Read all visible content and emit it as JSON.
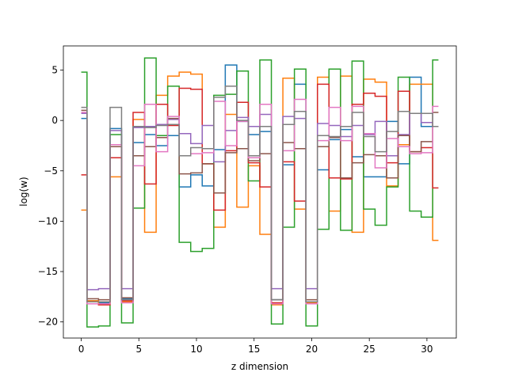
{
  "chart_data": {
    "type": "line",
    "drawstyle": "steps-mid",
    "xlabel": "z dimension",
    "ylabel": "log(w)",
    "xlim": [
      -1.55,
      32.55
    ],
    "ylim": [
      -21.6,
      7.4
    ],
    "xticks": [
      0,
      5,
      10,
      15,
      20,
      25,
      30
    ],
    "yticks": [
      5,
      0,
      -5,
      -10,
      -15,
      -20
    ],
    "ytick_labels": [
      "5",
      "0",
      "−5",
      "−10",
      "−15",
      "−20"
    ],
    "grid": false,
    "legend": "none",
    "x": [
      0,
      1,
      2,
      3,
      4,
      5,
      6,
      7,
      8,
      9,
      10,
      11,
      12,
      13,
      14,
      15,
      16,
      17,
      18,
      19,
      20,
      21,
      22,
      23,
      24,
      25,
      26,
      27,
      28,
      29,
      30,
      31
    ],
    "series": [
      {
        "color": "#1f77b4",
        "values": [
          0.2,
          -17.9,
          -18.1,
          -0.8,
          -17.7,
          -2.2,
          -1.4,
          -2.5,
          -1.5,
          -6.6,
          -5.4,
          -6.5,
          -2.9,
          5.5,
          -0.1,
          -1.4,
          -1.1,
          -17.8,
          -4.4,
          3.6,
          -18.0,
          -4.9,
          -1.9,
          -0.9,
          -3.6,
          -5.6,
          -5.6,
          -0.1,
          -4.3,
          4.3,
          -0.6,
          -0.6
        ]
      },
      {
        "color": "#ff7f0e",
        "values": [
          -8.9,
          -17.9,
          -18.3,
          -5.6,
          -18.0,
          0.1,
          -11.1,
          2.5,
          4.4,
          4.8,
          4.6,
          -4.3,
          -10.6,
          0.6,
          -8.6,
          -4.5,
          -11.3,
          -18.3,
          4.2,
          -8.8,
          -18.1,
          4.3,
          -9.0,
          4.4,
          -11.1,
          4.1,
          3.8,
          -6.5,
          -2.4,
          3.6,
          3.6,
          -11.9
        ]
      },
      {
        "color": "#2ca02c",
        "values": [
          4.8,
          -20.5,
          -20.4,
          -1.4,
          -20.1,
          -8.7,
          6.2,
          -1.5,
          3.4,
          -12.1,
          -13.0,
          -12.7,
          2.5,
          2.6,
          4.9,
          -6.0,
          6.0,
          -20.2,
          -10.6,
          5.1,
          -20.4,
          -10.8,
          5.1,
          -10.9,
          5.9,
          -8.8,
          -10.4,
          -6.6,
          4.3,
          -9.0,
          -9.6,
          6.0
        ]
      },
      {
        "color": "#d62728",
        "values": [
          -5.4,
          -18.2,
          -18.3,
          -3.7,
          -17.9,
          0.8,
          -6.3,
          1.6,
          -0.5,
          3.2,
          3.1,
          -4.3,
          -8.9,
          -3.0,
          1.8,
          -4.2,
          -6.6,
          -18.1,
          -4.1,
          -8.0,
          -18.0,
          3.6,
          -5.7,
          -5.8,
          1.6,
          2.7,
          2.4,
          -4.2,
          2.9,
          -3.1,
          -2.7,
          -6.7
        ]
      },
      {
        "color": "#9467bd",
        "values": [
          0.7,
          -16.8,
          -16.7,
          -1.0,
          -16.7,
          -0.7,
          -0.6,
          -0.4,
          0.1,
          -1.3,
          -2.3,
          -0.5,
          -4.1,
          -1.0,
          0.3,
          -0.6,
          0.6,
          -16.7,
          0.4,
          0.2,
          -16.7,
          -0.3,
          -0.5,
          -1.6,
          -0.5,
          -1.4,
          -0.1,
          -3.5,
          -1.4,
          0.7,
          -0.2,
          -0.6
        ]
      },
      {
        "color": "#8c564b",
        "values": [
          1.0,
          -17.7,
          -17.8,
          -2.6,
          -17.6,
          -3.5,
          -2.6,
          -1.7,
          0.2,
          -5.3,
          -5.2,
          -4.3,
          -7.2,
          -3.2,
          -2.8,
          -4.0,
          -3.3,
          -17.8,
          -2.2,
          -2.8,
          -17.8,
          -2.6,
          -1.7,
          -5.7,
          -4.2,
          -3.4,
          -3.5,
          -5.7,
          -1.5,
          -3.1,
          -2.1,
          0.8
        ]
      },
      {
        "color": "#e377c2",
        "values": [
          0.8,
          -18.2,
          -18.2,
          -2.4,
          -18.1,
          -4.5,
          1.6,
          -3.1,
          0.4,
          -3.5,
          -3.3,
          -3.2,
          1.9,
          -2.5,
          -0.1,
          -3.7,
          1.6,
          -18.2,
          -3.0,
          2.1,
          -18.2,
          -2.0,
          1.3,
          -2.0,
          1.4,
          -1.3,
          -4.7,
          -1.8,
          -2.6,
          -3.3,
          -3.2,
          1.4
        ]
      },
      {
        "color": "#7f7f7f",
        "values": [
          1.3,
          -18.0,
          -18.0,
          1.3,
          -17.8,
          -0.6,
          -0.7,
          -0.5,
          -0.4,
          -3.5,
          -2.7,
          -2.8,
          2.3,
          3.4,
          0.0,
          -3.5,
          -0.6,
          -17.8,
          -0.4,
          0.9,
          -18.0,
          -1.5,
          -1.6,
          -0.6,
          0.8,
          -1.6,
          -3.1,
          -1.1,
          0.9,
          0.7,
          0.7,
          -0.6
        ]
      }
    ]
  }
}
